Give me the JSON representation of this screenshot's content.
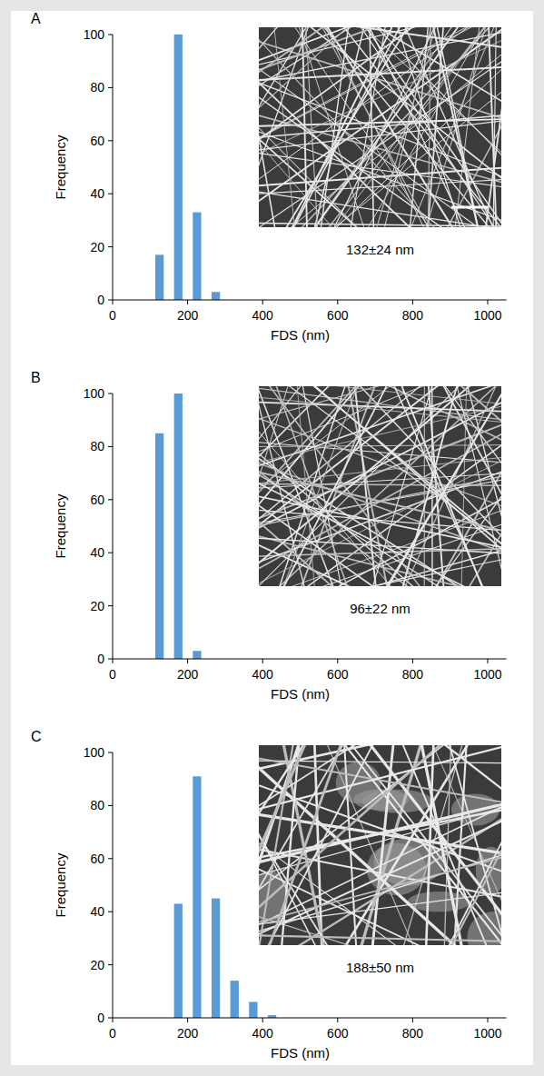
{
  "chart_data": [
    {
      "type": "histogram",
      "title": "A",
      "bins": [
        100,
        150,
        200,
        250,
        300
      ],
      "values": [
        17,
        100,
        33,
        3
      ],
      "color": "#5b9bd5",
      "x_label": "FDS (nm)",
      "y_label": "Frequency",
      "xlim": [
        0,
        1050
      ],
      "ylim": [
        0,
        100
      ],
      "xticks": [
        0,
        200,
        400,
        600,
        800,
        1000
      ],
      "yticks": [
        0,
        20,
        40,
        60,
        80,
        100
      ],
      "annotations": [
        "132±24 nm"
      ]
    },
    {
      "type": "histogram",
      "title": "B",
      "bins": [
        100,
        150,
        200,
        250
      ],
      "values": [
        85,
        100,
        3
      ],
      "color": "#5b9bd5",
      "x_label": "FDS (nm)",
      "y_label": "Frequency",
      "xlim": [
        0,
        1050
      ],
      "ylim": [
        0,
        100
      ],
      "xticks": [
        0,
        200,
        400,
        600,
        800,
        1000
      ],
      "yticks": [
        0,
        20,
        40,
        60,
        80,
        100
      ],
      "annotations": [
        "96±22 nm"
      ]
    },
    {
      "type": "histogram",
      "title": "C",
      "bins": [
        150,
        200,
        250,
        300,
        350,
        400,
        450
      ],
      "values": [
        43,
        91,
        45,
        14,
        6,
        1
      ],
      "color": "#5b9bd5",
      "x_label": "FDS (nm)",
      "y_label": "Frequency",
      "xlim": [
        0,
        1050
      ],
      "ylim": [
        0,
        100
      ],
      "xticks": [
        0,
        200,
        400,
        600,
        800,
        1000
      ],
      "yticks": [
        0,
        20,
        40,
        60,
        80,
        100
      ],
      "annotations": [
        "188±50 nm"
      ]
    }
  ]
}
